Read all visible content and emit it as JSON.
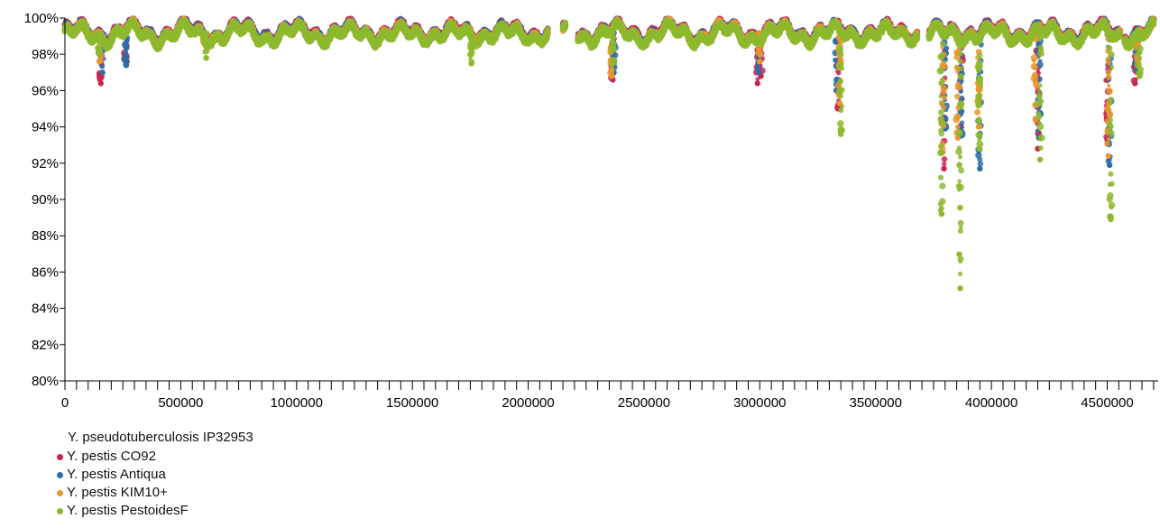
{
  "chart_data": {
    "type": "scatter",
    "title": "",
    "xlabel": "",
    "ylabel": "",
    "xlim": [
      0,
      4720000
    ],
    "ylim": [
      80,
      100
    ],
    "y_tick_step": 2,
    "y_ticks": [
      "100%",
      "98%",
      "96%",
      "94%",
      "92%",
      "90%",
      "88%",
      "86%",
      "84%",
      "82%",
      "80%"
    ],
    "x_major_step": 500000,
    "x_minor_step": 50000,
    "x_ticks": [
      "0",
      "500000",
      "1000000",
      "1500000",
      "2000000",
      "2500000",
      "3000000",
      "3500000",
      "4000000",
      "4500000"
    ],
    "reference_genome": "Y. pseudotuberculosis IP32953",
    "legend_position": "bottom-left",
    "grid": false,
    "series": [
      {
        "name": "Y. pestis CO92",
        "color": "#c9264f",
        "dips": [
          [
            155000,
            96.4
          ],
          [
            262000,
            97.6
          ],
          [
            2365000,
            96.6
          ],
          [
            2990000,
            96.4
          ],
          [
            3005000,
            96.8
          ],
          [
            3340000,
            95.0
          ],
          [
            3795000,
            91.7
          ],
          [
            3870000,
            94.0
          ],
          [
            4200000,
            92.8
          ],
          [
            4500000,
            93.3
          ],
          [
            4620000,
            96.4
          ]
        ]
      },
      {
        "name": "Y. pestis Antiqua",
        "color": "#2c6da6",
        "dips": [
          [
            162000,
            97.0
          ],
          [
            265000,
            97.4
          ],
          [
            2370000,
            97.0
          ],
          [
            2995000,
            97.0
          ],
          [
            3330000,
            96.0
          ],
          [
            3800000,
            93.9
          ],
          [
            3868000,
            93.5
          ],
          [
            3950000,
            91.7
          ],
          [
            4205000,
            93.4
          ],
          [
            4510000,
            91.9
          ],
          [
            4625000,
            97.2
          ]
        ]
      },
      {
        "name": "Y. pestis KIM10+",
        "color": "#e8962e",
        "dips": [
          [
            150000,
            97.6
          ],
          [
            600000,
            98.6
          ],
          [
            2360000,
            96.8
          ],
          [
            3000000,
            97.6
          ],
          [
            3345000,
            95.3
          ],
          [
            3790000,
            92.6
          ],
          [
            3855000,
            93.4
          ],
          [
            3945000,
            94.0
          ],
          [
            4190000,
            94.4
          ],
          [
            4505000,
            92.4
          ],
          [
            4630000,
            97.4
          ]
        ]
      },
      {
        "name": "Y. pestis PestoidesF",
        "color": "#8db92e",
        "dips": [
          [
            148000,
            98.0
          ],
          [
            610000,
            97.8
          ],
          [
            1755000,
            97.5
          ],
          [
            2365000,
            97.5
          ],
          [
            3350000,
            93.6
          ],
          [
            3785000,
            89.2
          ],
          [
            3865000,
            85.1
          ],
          [
            3948000,
            92.8
          ],
          [
            4210000,
            92.2
          ],
          [
            4515000,
            88.9
          ],
          [
            4640000,
            96.8
          ]
        ]
      }
    ]
  }
}
